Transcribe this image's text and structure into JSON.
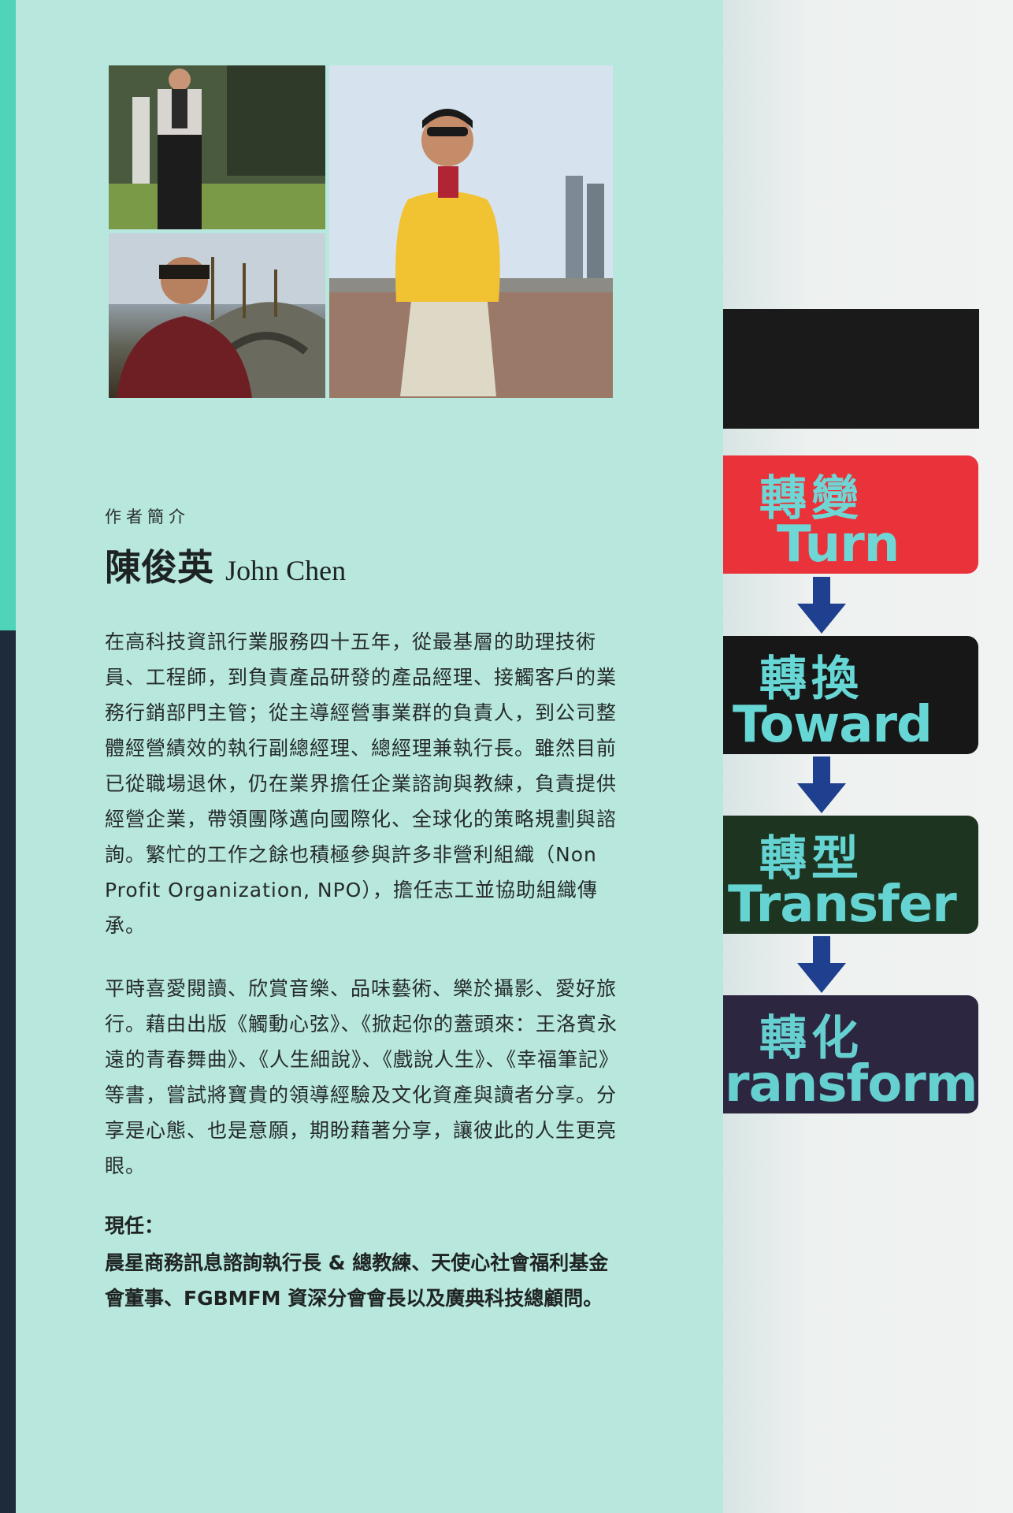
{
  "author_section": {
    "heading": "作者簡介",
    "name_cn": "陳俊英",
    "name_en": "John Chen",
    "paragraph1": "在高科技資訊行業服務四十五年，從最基層的助理技術員、工程師，到負責產品研發的產品經理、接觸客戶的業務行銷部門主管；從主導經營事業群的負責人，到公司整體經營績效的執行副總經理、總經理兼執行長。雖然目前已從職場退休，仍在業界擔任企業諮詢與教練，負責提供經營企業，帶領團隊邁向國際化、全球化的策略規劃與諮詢。繁忙的工作之餘也積極參與許多非營利組織（Non Profit Organization, NPO），擔任志工並協助組織傳承。",
    "paragraph2": "平時喜愛閱讀、欣賞音樂、品味藝術、樂於攝影、愛好旅行。藉由出版《觸動心弦》、《掀起你的蓋頭來：王洛賓永遠的青春舞曲》、《人生細說》、《戲說人生》、《幸福筆記》等書，嘗試將寶貴的領導經驗及文化資產與讀者分享。分享是心態、也是意願，期盼藉著分享，讓彼此的人生更亮眼。",
    "current_label": "現任：",
    "current_body": "晨星商務訊息諮詢執行長 & 總教練、天使心社會福利基金會董事、FGBMFM 資深分會會長以及廣典科技總顧問。"
  },
  "steps": [
    {
      "cn": "轉變",
      "en": "Turn"
    },
    {
      "cn": "轉換",
      "en": "Toward"
    },
    {
      "cn": "轉型",
      "en": "Transfer"
    },
    {
      "cn": "轉化",
      "en": "ransform"
    }
  ],
  "colors": {
    "flap_bg": "#b7e7dd",
    "step1_bg": "#e93239",
    "step2_bg": "#171717",
    "step3_bg": "#1d3520",
    "step4_bg": "#2d2640",
    "step_text": "#6ed7d6",
    "arrow": "#1f3f8f"
  }
}
